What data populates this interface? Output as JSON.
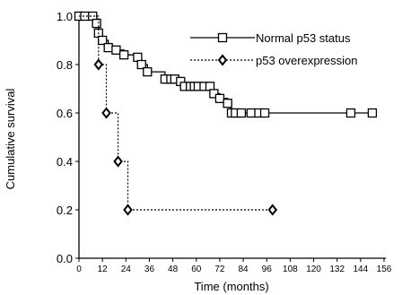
{
  "chart_data": {
    "type": "line",
    "step": true,
    "xlabel": "Time (months)",
    "ylabel": "Cumulative survival",
    "xlim": [
      0,
      156
    ],
    "ylim": [
      0,
      1.0
    ],
    "xticks": [
      0,
      12,
      24,
      36,
      48,
      60,
      72,
      84,
      96,
      108,
      120,
      132,
      144,
      156
    ],
    "yticks": [
      0.0,
      0.2,
      0.4,
      0.6,
      0.8,
      1.0
    ],
    "ytick_labels": [
      "0.0",
      "0.2",
      "0.4",
      "0.6",
      "0.8",
      "1.0"
    ],
    "legend_position": "top-right",
    "series": [
      {
        "name": "Normal p53 status",
        "line_style": "solid",
        "marker": "square",
        "color": "#000000",
        "points": [
          [
            0,
            1.0
          ],
          [
            3,
            1.0
          ],
          [
            7,
            1.0
          ],
          [
            9,
            0.97
          ],
          [
            10,
            0.93
          ],
          [
            12,
            0.9
          ],
          [
            15,
            0.87
          ],
          [
            19,
            0.86
          ],
          [
            23,
            0.84
          ],
          [
            30,
            0.83
          ],
          [
            32,
            0.8
          ],
          [
            35,
            0.77
          ],
          [
            44,
            0.74
          ],
          [
            47,
            0.74
          ],
          [
            49,
            0.74
          ],
          [
            52,
            0.73
          ],
          [
            54,
            0.71
          ],
          [
            57,
            0.71
          ],
          [
            59,
            0.71
          ],
          [
            61,
            0.71
          ],
          [
            64,
            0.71
          ],
          [
            67,
            0.71
          ],
          [
            69,
            0.68
          ],
          [
            72,
            0.66
          ],
          [
            76,
            0.64
          ],
          [
            78,
            0.6
          ],
          [
            80,
            0.6
          ],
          [
            83,
            0.6
          ],
          [
            88,
            0.6
          ],
          [
            92,
            0.6
          ],
          [
            95,
            0.6
          ],
          [
            139,
            0.6
          ],
          [
            150,
            0.6
          ]
        ]
      },
      {
        "name": "p53 overexpression",
        "line_style": "dotted",
        "marker": "diamond",
        "color": "#000000",
        "points": [
          [
            0,
            1.0
          ],
          [
            10,
            0.8
          ],
          [
            14,
            0.6
          ],
          [
            20,
            0.4
          ],
          [
            25,
            0.2
          ],
          [
            99,
            0.2
          ]
        ]
      }
    ]
  }
}
